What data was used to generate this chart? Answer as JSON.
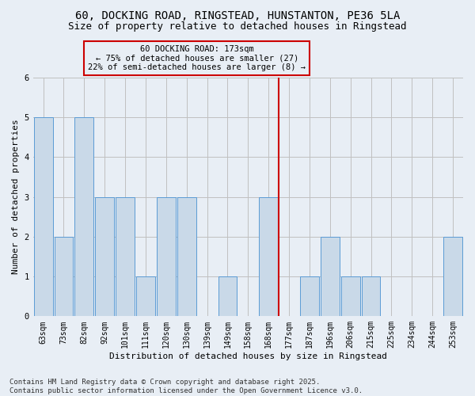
{
  "title_line1": "60, DOCKING ROAD, RINGSTEAD, HUNSTANTON, PE36 5LA",
  "title_line2": "Size of property relative to detached houses in Ringstead",
  "xlabel": "Distribution of detached houses by size in Ringstead",
  "ylabel": "Number of detached properties",
  "categories": [
    "63sqm",
    "73sqm",
    "82sqm",
    "92sqm",
    "101sqm",
    "111sqm",
    "120sqm",
    "130sqm",
    "139sqm",
    "149sqm",
    "158sqm",
    "168sqm",
    "177sqm",
    "187sqm",
    "196sqm",
    "206sqm",
    "215sqm",
    "225sqm",
    "234sqm",
    "244sqm",
    "253sqm"
  ],
  "values": [
    5,
    2,
    5,
    3,
    3,
    1,
    3,
    3,
    0,
    1,
    0,
    3,
    0,
    1,
    2,
    1,
    1,
    0,
    0,
    0,
    2
  ],
  "bar_color": "#c9d9e8",
  "bar_edge_color": "#5b9bd5",
  "grid_color": "#c0c0c0",
  "background_color": "#e8eef5",
  "vline_index": 11,
  "vline_color": "#cc0000",
  "annotation_title": "60 DOCKING ROAD: 173sqm",
  "annotation_line2": "← 75% of detached houses are smaller (27)",
  "annotation_line3": "22% of semi-detached houses are larger (8) →",
  "annotation_box_color": "#cc0000",
  "ylim": [
    0,
    6
  ],
  "yticks": [
    0,
    1,
    2,
    3,
    4,
    5,
    6
  ],
  "footer_line1": "Contains HM Land Registry data © Crown copyright and database right 2025.",
  "footer_line2": "Contains public sector information licensed under the Open Government Licence v3.0.",
  "title_fontsize": 10,
  "subtitle_fontsize": 9,
  "axis_label_fontsize": 8,
  "tick_fontsize": 7,
  "footer_fontsize": 6.5,
  "annotation_fontsize": 7.5
}
